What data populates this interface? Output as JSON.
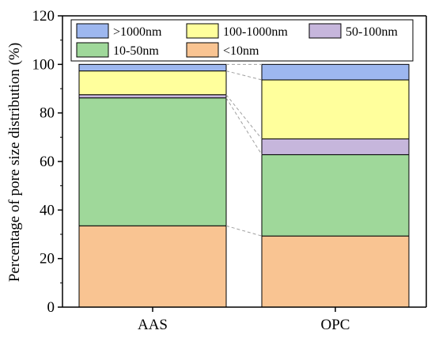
{
  "chart_data": {
    "type": "bar",
    "stacked": true,
    "title": "",
    "xlabel": "",
    "ylabel": "Percentage of pore size distribution (%)",
    "ylim": [
      0,
      120
    ],
    "yticks": [
      0,
      20,
      40,
      60,
      80,
      100,
      120
    ],
    "categories": [
      "AAS",
      "OPC"
    ],
    "series": [
      {
        "name": "<10nm",
        "color": "#f9c492",
        "values": [
          33.5,
          29.3
        ]
      },
      {
        "name": "10-50nm",
        "color": "#9fd89a",
        "values": [
          52.7,
          33.5
        ]
      },
      {
        "name": "50-100nm",
        "color": "#c6b6dc",
        "values": [
          1.3,
          6.5
        ]
      },
      {
        "name": "100-1000nm",
        "color": "#ffff9c",
        "values": [
          9.8,
          24.3
        ]
      },
      {
        "name": ">1000nm",
        "color": "#9db7ef",
        "values": [
          2.7,
          6.4
        ]
      }
    ],
    "legend_order": [
      ">1000nm",
      "100-1000nm",
      "50-100nm",
      "10-50nm",
      "<10nm"
    ],
    "legend_position": "top",
    "connector_lines": true,
    "grid": false
  }
}
